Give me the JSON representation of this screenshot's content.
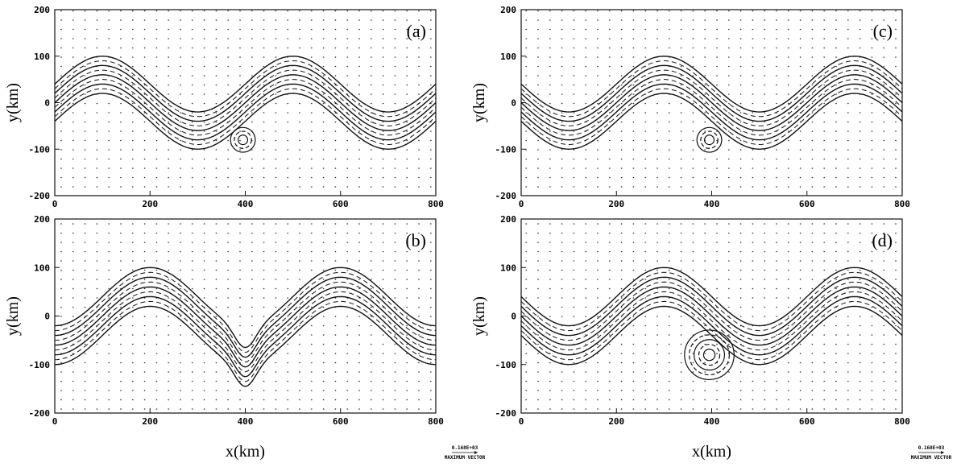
{
  "chart_data": [
    {
      "type": "contour",
      "panel_label": "(a)",
      "ylabel": "y(km)",
      "xlim": [
        0,
        800
      ],
      "ylim": [
        -200,
        200
      ],
      "xticks": [
        0,
        200,
        400,
        600,
        800
      ],
      "yticks": [
        -200,
        -100,
        0,
        100,
        200
      ]
    },
    {
      "type": "contour",
      "panel_label": "(c)",
      "ylabel": "y(km)",
      "xlim": [
        0,
        800
      ],
      "ylim": [
        -200,
        200
      ],
      "xticks": [
        0,
        200,
        400,
        600,
        800
      ],
      "yticks": [
        -200,
        -100,
        0,
        100,
        200
      ]
    },
    {
      "type": "contour",
      "panel_label": "(b)",
      "ylabel": "y(km)",
      "xlabel": "x(km)",
      "vector_scale_label": "0.168E+03",
      "vector_caption": "MAXIMUM VECTOR",
      "xlim": [
        0,
        800
      ],
      "ylim": [
        -200,
        200
      ],
      "xticks": [
        0,
        200,
        400,
        600,
        800
      ],
      "yticks": [
        -200,
        -100,
        0,
        100,
        200
      ]
    },
    {
      "type": "contour",
      "panel_label": "(d)",
      "ylabel": "y(km)",
      "xlabel": "x(km)",
      "vector_scale_label": "0.168E+03",
      "vector_caption": "MAXIMUM VECTOR",
      "xlim": [
        0,
        800
      ],
      "ylim": [
        -200,
        200
      ],
      "xticks": [
        0,
        200,
        400,
        600,
        800
      ],
      "yticks": [
        -200,
        -100,
        0,
        100,
        200
      ]
    }
  ]
}
